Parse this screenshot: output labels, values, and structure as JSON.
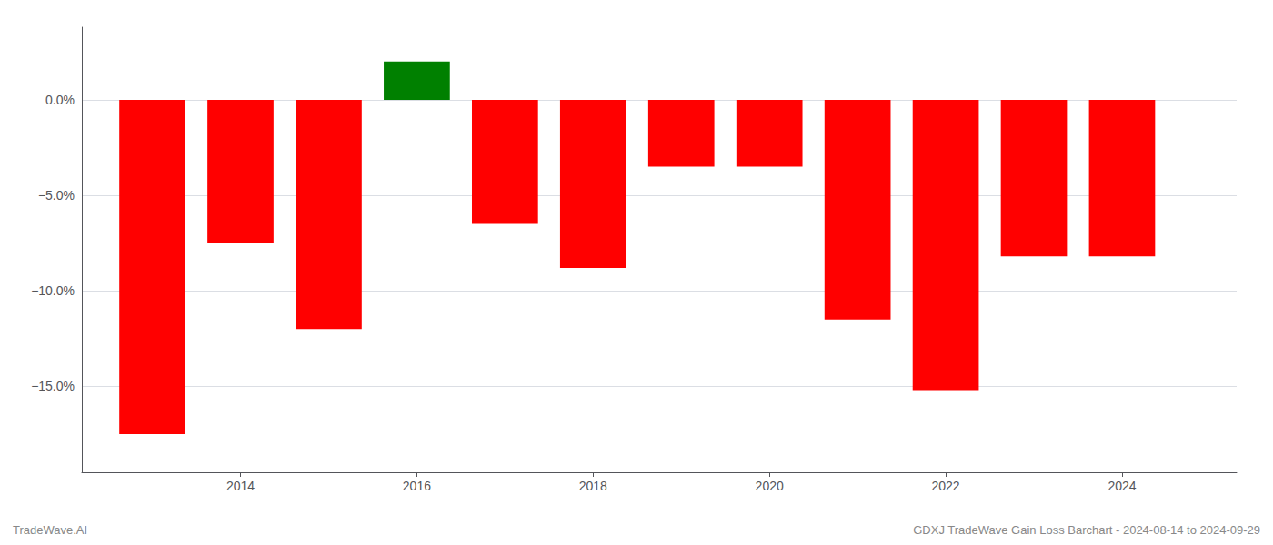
{
  "chart_data": {
    "type": "bar",
    "x": [
      2013,
      2014,
      2015,
      2016,
      2017,
      2018,
      2019,
      2020,
      2021,
      2022,
      2023,
      2024
    ],
    "values": [
      -17.5,
      -7.5,
      -12.0,
      2.0,
      -6.5,
      -8.8,
      -3.5,
      -3.5,
      -11.5,
      -15.2,
      -8.2,
      -8.2
    ],
    "colors": [
      "#ff0000",
      "#ff0000",
      "#ff0000",
      "#008000",
      "#ff0000",
      "#ff0000",
      "#ff0000",
      "#ff0000",
      "#ff0000",
      "#ff0000",
      "#ff0000",
      "#ff0000"
    ],
    "xlim": [
      2012.2,
      2025.3
    ],
    "xticks": [
      2014,
      2016,
      2018,
      2020,
      2022,
      2024
    ],
    "ylim": [
      -19.5,
      3.8
    ],
    "yticks": [
      {
        "value": 0.0,
        "label": "0.0%"
      },
      {
        "value": -5.0,
        "label": "−5.0%"
      },
      {
        "value": -10.0,
        "label": "−10.0%"
      },
      {
        "value": -15.0,
        "label": "−15.0%"
      }
    ],
    "grid": "y",
    "annotations": [
      "TradeWave.AI",
      "GDXJ TradeWave Gain Loss Barchart - 2024-08-14 to 2024-09-29"
    ]
  }
}
